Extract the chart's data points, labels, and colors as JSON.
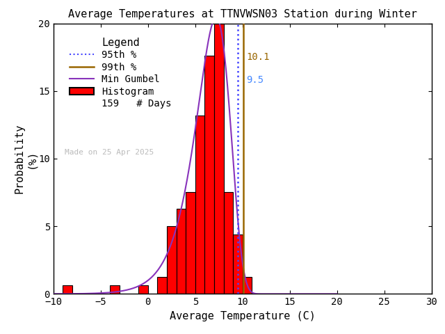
{
  "title": "Average Temperatures at TTNVWSN03 Station during Winter",
  "xlabel": "Average Temperature (C)",
  "ylabel1": "Probability",
  "ylabel2": "(%)",
  "xlim": [
    -10,
    30
  ],
  "ylim": [
    0,
    20
  ],
  "xticks": [
    -10,
    -5,
    0,
    5,
    10,
    15,
    20,
    25,
    30
  ],
  "yticks": [
    0,
    5,
    10,
    15,
    20
  ],
  "bin_edges": [
    -10,
    -9,
    -8,
    -7,
    -6,
    -5,
    -4,
    -3,
    -2,
    -1,
    0,
    1,
    2,
    3,
    4,
    5,
    6,
    7,
    8,
    9,
    10,
    11
  ],
  "bin_heights": [
    0.0,
    0.63,
    0.0,
    0.0,
    0.0,
    0.0,
    0.63,
    0.0,
    0.0,
    0.63,
    0.0,
    1.26,
    5.03,
    6.29,
    7.55,
    13.21,
    17.61,
    20.13,
    7.55,
    4.4,
    1.26,
    0.0
  ],
  "percentile_95": 9.5,
  "percentile_99": 10.1,
  "n_days": 159,
  "gumbel_mu": 7.2,
  "gumbel_beta": 1.8,
  "bar_color": "#ff0000",
  "bar_edgecolor": "#000000",
  "line_95_color": "#4444ff",
  "line_99_color": "#996600",
  "gumbel_color": "#8833bb",
  "label_95_color": "#4488ff",
  "label_99_color": "#996600",
  "watermark": "Made on 25 Apr 2025",
  "watermark_color": "#bbbbbb",
  "background_color": "#ffffff",
  "title_fontsize": 11,
  "axis_fontsize": 11,
  "tick_fontsize": 10,
  "legend_fontsize": 10
}
